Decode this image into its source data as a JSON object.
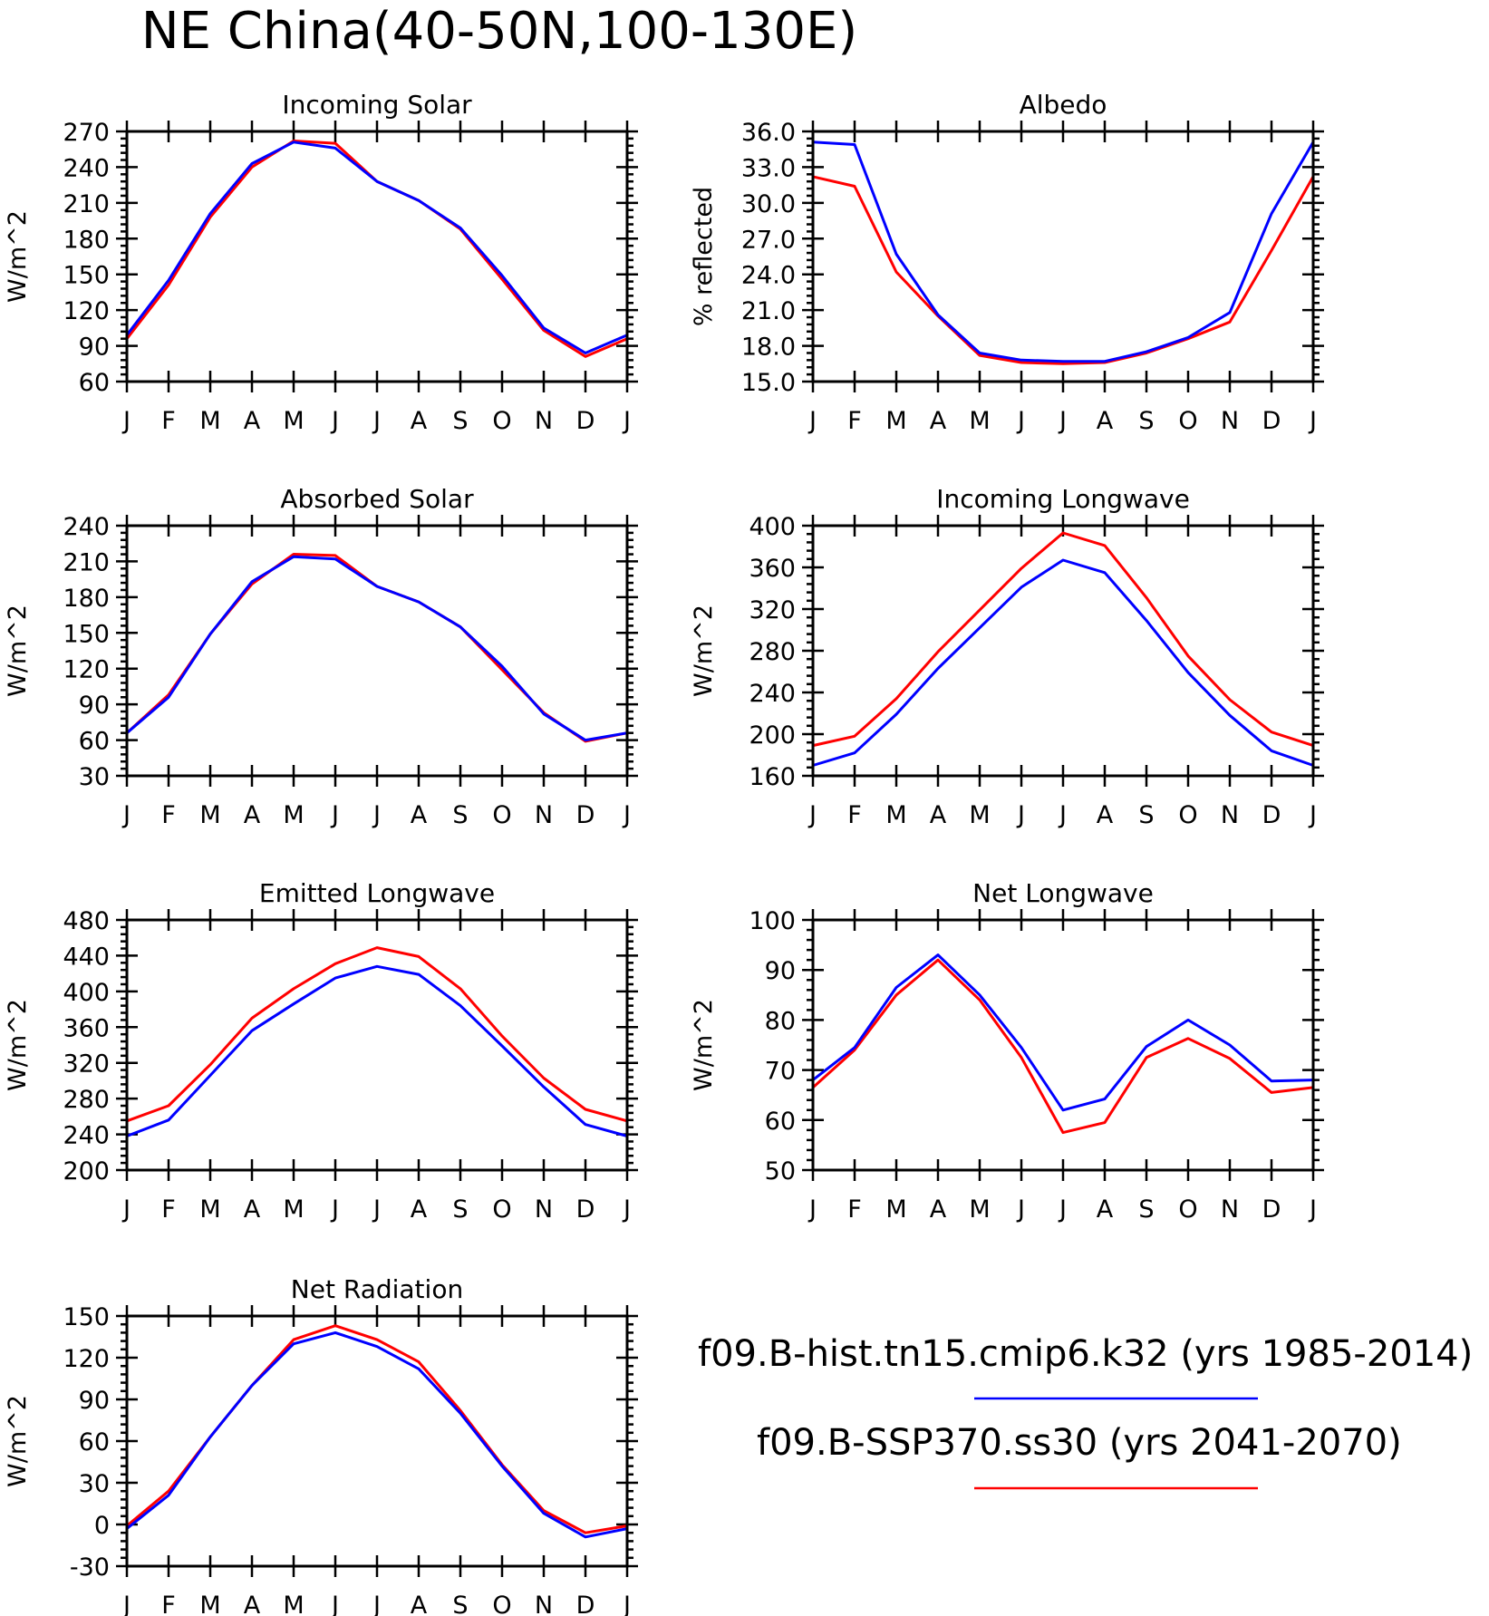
{
  "main_title": "NE China(40-50N,100-130E)",
  "legend": {
    "entries": [
      {
        "label": "f09.B-hist.tn15.cmip6.k32 (yrs 1985-2014)",
        "color": "#0000ff"
      },
      {
        "label": "f09.B-SSP370.ss30 (yrs 2041-2070)",
        "color": "#ff0000"
      }
    ]
  },
  "chart_data": [
    {
      "type": "line",
      "title": "Incoming Solar",
      "ylabel": "W/m^2",
      "categories": [
        "J",
        "F",
        "M",
        "A",
        "M",
        "J",
        "J",
        "A",
        "S",
        "O",
        "N",
        "D",
        "J"
      ],
      "ylim": [
        60,
        270
      ],
      "yticks": [
        "60",
        "90",
        "120",
        "150",
        "180",
        "210",
        "240",
        "270"
      ],
      "series": [
        {
          "color": "#ff0000",
          "values": [
            96,
            141,
            198,
            240,
            262,
            260,
            228,
            212,
            188,
            146,
            103,
            81,
            96
          ]
        },
        {
          "color": "#0000ff",
          "values": [
            99,
            145,
            201,
            243,
            261,
            256,
            228,
            212,
            189,
            149,
            105,
            84,
            99
          ]
        }
      ]
    },
    {
      "type": "line",
      "title": "Albedo",
      "ylabel": "% reflected",
      "categories": [
        "J",
        "F",
        "M",
        "A",
        "M",
        "J",
        "J",
        "A",
        "S",
        "O",
        "N",
        "D",
        "J"
      ],
      "ylim": [
        15,
        36
      ],
      "yticks": [
        "15.0",
        "18.0",
        "21.0",
        "24.0",
        "27.0",
        "30.0",
        "33.0",
        "36.0"
      ],
      "series": [
        {
          "color": "#ff0000",
          "values": [
            32.2,
            31.4,
            24.2,
            20.5,
            17.2,
            16.6,
            16.5,
            16.6,
            17.4,
            18.6,
            20.0,
            26.0,
            32.2
          ]
        },
        {
          "color": "#0000ff",
          "values": [
            35.1,
            34.9,
            25.7,
            20.6,
            17.4,
            16.8,
            16.7,
            16.7,
            17.5,
            18.7,
            20.8,
            29.1,
            35.1
          ]
        }
      ]
    },
    {
      "type": "line",
      "title": "Absorbed Solar",
      "ylabel": "W/m^2",
      "categories": [
        "J",
        "F",
        "M",
        "A",
        "M",
        "J",
        "J",
        "A",
        "S",
        "O",
        "N",
        "D",
        "J"
      ],
      "ylim": [
        30,
        240
      ],
      "yticks": [
        "30",
        "60",
        "90",
        "120",
        "150",
        "180",
        "210",
        "240"
      ],
      "series": [
        {
          "color": "#ff0000",
          "values": [
            66,
            98,
            149,
            191,
            216,
            215,
            189,
            176,
            155,
            119,
            83,
            59,
            66
          ]
        },
        {
          "color": "#0000ff",
          "values": [
            66,
            96,
            149,
            193,
            214,
            212,
            189,
            176,
            155,
            122,
            82,
            60,
            66
          ]
        }
      ]
    },
    {
      "type": "line",
      "title": "Incoming Longwave",
      "ylabel": "W/m^2",
      "categories": [
        "J",
        "F",
        "M",
        "A",
        "M",
        "J",
        "J",
        "A",
        "S",
        "O",
        "N",
        "D",
        "J"
      ],
      "ylim": [
        160,
        400
      ],
      "yticks": [
        "160",
        "200",
        "240",
        "280",
        "320",
        "360",
        "400"
      ],
      "series": [
        {
          "color": "#ff0000",
          "values": [
            189,
            198,
            234,
            279,
            319,
            359,
            393,
            381,
            331,
            275,
            233,
            202,
            189
          ]
        },
        {
          "color": "#0000ff",
          "values": [
            170,
            182,
            219,
            263,
            302,
            341,
            367,
            355,
            309,
            259,
            218,
            184,
            170
          ]
        }
      ]
    },
    {
      "type": "line",
      "title": "Emitted Longwave",
      "ylabel": "W/m^2",
      "categories": [
        "J",
        "F",
        "M",
        "A",
        "M",
        "J",
        "J",
        "A",
        "S",
        "O",
        "N",
        "D",
        "J"
      ],
      "ylim": [
        200,
        480
      ],
      "yticks": [
        "200",
        "240",
        "280",
        "320",
        "360",
        "400",
        "440",
        "480"
      ],
      "series": [
        {
          "color": "#ff0000",
          "values": [
            255,
            272,
            318,
            370,
            403,
            431,
            449,
            439,
            403,
            350,
            303,
            268,
            255
          ]
        },
        {
          "color": "#0000ff",
          "values": [
            238,
            256,
            306,
            356,
            386,
            415,
            428,
            419,
            384,
            339,
            293,
            251,
            238
          ]
        }
      ]
    },
    {
      "type": "line",
      "title": "Net Longwave",
      "ylabel": "W/m^2",
      "categories": [
        "J",
        "F",
        "M",
        "A",
        "M",
        "J",
        "J",
        "A",
        "S",
        "O",
        "N",
        "D",
        "J"
      ],
      "ylim": [
        50,
        100
      ],
      "yticks": [
        "50",
        "60",
        "70",
        "80",
        "90",
        "100"
      ],
      "series": [
        {
          "color": "#ff0000",
          "values": [
            66.5,
            74,
            85,
            92,
            84,
            72.5,
            57.5,
            59.5,
            72.5,
            76.3,
            72.3,
            65.5,
            66.5
          ]
        },
        {
          "color": "#0000ff",
          "values": [
            68,
            74.5,
            86.5,
            93,
            85,
            74.5,
            62,
            64.2,
            74.7,
            80,
            75,
            67.8,
            68
          ]
        }
      ]
    },
    {
      "type": "line",
      "title": "Net Radiation",
      "ylabel": "W/m^2",
      "categories": [
        "J",
        "F",
        "M",
        "A",
        "M",
        "J",
        "J",
        "A",
        "S",
        "O",
        "N",
        "D",
        "J"
      ],
      "ylim": [
        -30,
        150
      ],
      "yticks": [
        "-30",
        "0",
        "30",
        "60",
        "90",
        "120",
        "150"
      ],
      "series": [
        {
          "color": "#ff0000",
          "values": [
            -1,
            24,
            63,
            100,
            133,
            143,
            133,
            117,
            82,
            43,
            10,
            -6,
            -1
          ]
        },
        {
          "color": "#0000ff",
          "values": [
            -3,
            21,
            63,
            100,
            130,
            138,
            128,
            112,
            80,
            42,
            8,
            -9,
            -3
          ]
        }
      ]
    }
  ]
}
